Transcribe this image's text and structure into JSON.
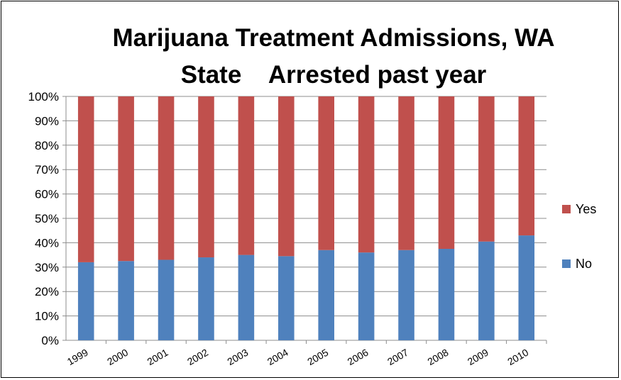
{
  "chart_data": {
    "type": "bar",
    "stacked": true,
    "percent": true,
    "title_line1": "Marijuana Treatment Admissions, WA",
    "title_line2": "State    Arrested past year",
    "categories": [
      "1999",
      "2000",
      "2001",
      "2002",
      "2003",
      "2004",
      "2005",
      "2006",
      "2007",
      "2008",
      "2009",
      "2010"
    ],
    "series": [
      {
        "name": "No",
        "color": "#4F81BD",
        "values": [
          32,
          32.5,
          33,
          34,
          35,
          34.5,
          37,
          36,
          37,
          37.5,
          40.5,
          43
        ]
      },
      {
        "name": "Yes",
        "color": "#C0504D",
        "values": [
          68,
          67.5,
          67,
          66,
          65,
          65.5,
          63,
          64,
          63,
          62.5,
          59.5,
          57
        ]
      }
    ],
    "ylim": [
      0,
      100
    ],
    "yticks": [
      "0%",
      "10%",
      "20%",
      "30%",
      "40%",
      "50%",
      "60%",
      "70%",
      "80%",
      "90%",
      "100%"
    ],
    "grid": true,
    "legend": {
      "position": "right",
      "order": [
        "Yes",
        "No"
      ]
    }
  }
}
